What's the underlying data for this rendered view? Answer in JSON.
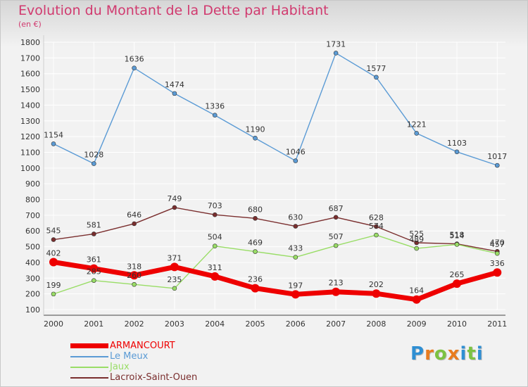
{
  "header": {
    "title": "Evolution du Montant de la Dette par Habitant",
    "unit": "(en €)"
  },
  "branding": {
    "logo_text": "Proxiti"
  },
  "colors": {
    "title": "#d13a6f",
    "grid": "#ffffff",
    "axis_text": "#333333"
  },
  "chart_data": {
    "type": "line",
    "title": "Evolution du Montant de la Dette par Habitant",
    "subtitle": "(en €)",
    "xlabel": "",
    "ylabel": "",
    "x": [
      "2000",
      "2001",
      "2002",
      "2003",
      "2004",
      "2005",
      "2006",
      "2007",
      "2008",
      "2009",
      "2010",
      "2011"
    ],
    "yticks": [
      100,
      200,
      300,
      400,
      500,
      600,
      700,
      800,
      900,
      1000,
      1100,
      1200,
      1300,
      1400,
      1500,
      1600,
      1700,
      1800
    ],
    "ylim": [
      100,
      1800
    ],
    "grid": true,
    "legend_position": "bottom-left",
    "series": [
      {
        "name": "ARMANCOURT",
        "color": "#ee0000",
        "values": [
          402,
          361,
          318,
          371,
          311,
          236,
          197,
          213,
          202,
          164,
          265,
          336
        ]
      },
      {
        "name": "Le Meux",
        "color": "#5b9bd5",
        "values": [
          1154,
          1028,
          1636,
          1474,
          1336,
          1190,
          1046,
          1731,
          1577,
          1221,
          1103,
          1017
        ]
      },
      {
        "name": "Jaux",
        "color": "#99dd66",
        "values": [
          199,
          285,
          260,
          235,
          504,
          469,
          433,
          507,
          574,
          489,
          514,
          457
        ]
      },
      {
        "name": "Lacroix-Saint-Ouen",
        "color": "#7a2e2e",
        "values": [
          545,
          581,
          646,
          749,
          703,
          680,
          630,
          687,
          628,
          525,
          518,
          470
        ]
      }
    ]
  }
}
